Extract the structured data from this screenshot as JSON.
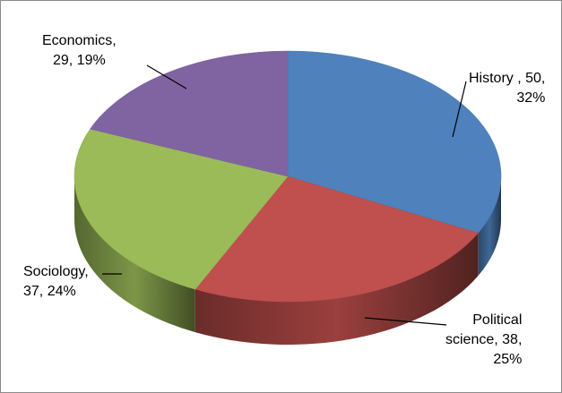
{
  "chart_data": {
    "type": "pie",
    "title": "",
    "legend": "none",
    "three_d": true,
    "slices": [
      {
        "label": "History ",
        "value": 50,
        "percent": "32%",
        "color": "#4f81bd",
        "data_label_lines": [
          "History , 50,",
          "32%"
        ]
      },
      {
        "label": "Political science",
        "value": 38,
        "percent": "25%",
        "color": "#c0504d",
        "data_label_lines": [
          "Political",
          "science, 38,",
          "25%"
        ]
      },
      {
        "label": "Sociology",
        "value": 37,
        "percent": "24%",
        "color": "#9bbb59",
        "data_label_lines": [
          "Sociology,",
          "37, 24%"
        ]
      },
      {
        "label": "Economics",
        "value": 29,
        "percent": "19%",
        "color": "#8064a2",
        "data_label_lines": [
          "Economics,",
          "29, 19%"
        ]
      }
    ]
  }
}
